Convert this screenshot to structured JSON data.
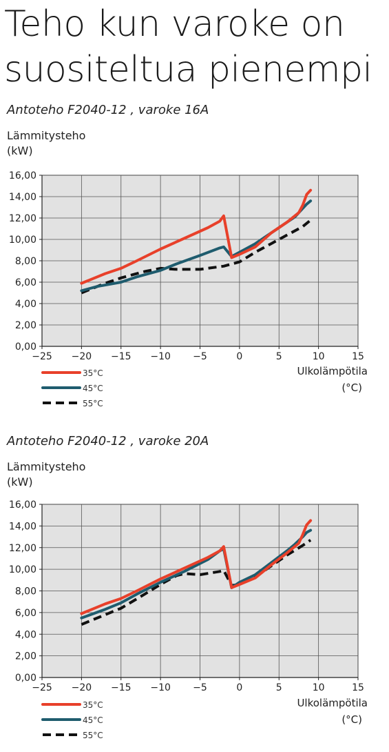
{
  "page": {
    "title_line1": "Teho kun varoke on",
    "title_line2": "suositeltua pienempi"
  },
  "colors": {
    "s35": "#e8402a",
    "s45": "#1f5c6e",
    "s55": "#111111",
    "plot_bg": "#e2e2e2",
    "grid": "#555555"
  },
  "chart_data": [
    {
      "type": "line",
      "title": "Antoteho F2040-12 , varoke 16A",
      "ylabel_line1": "Lämmitysteho",
      "ylabel_line2": "(kW)",
      "xlabel_line1": "Ulkolämpötila",
      "xlabel_line2": "(°C)",
      "xlim": [
        -25,
        15
      ],
      "ylim": [
        0,
        16
      ],
      "x_ticks": [
        "−25",
        "−20",
        "−15",
        "−10",
        "−5",
        "0",
        "5",
        "10",
        "15"
      ],
      "y_ticks": [
        "0,00",
        "2,00",
        "4,00",
        "6,00",
        "8,00",
        "10,00",
        "12,00",
        "14,00",
        "16,00"
      ],
      "grid": true,
      "legend_position": "bottom-left",
      "series": [
        {
          "name": "35°C",
          "style": "solid",
          "x": [
            -20,
            -17,
            -15,
            -13,
            -10,
            -7,
            -4,
            -2.5,
            -2,
            -1,
            0,
            2,
            4,
            6,
            7.5,
            8,
            8.5,
            9
          ],
          "y": [
            5.9,
            6.8,
            7.3,
            8.0,
            9.1,
            10.1,
            11.1,
            11.7,
            12.2,
            8.3,
            8.6,
            9.3,
            10.6,
            11.6,
            12.5,
            13.2,
            14.2,
            14.6
          ]
        },
        {
          "name": "45°C",
          "style": "solid",
          "x": [
            -20,
            -18,
            -15,
            -13,
            -10,
            -8,
            -5,
            -2.5,
            -2,
            -1,
            0,
            2,
            4,
            6,
            7,
            8,
            8.5,
            9
          ],
          "y": [
            5.2,
            5.6,
            6.0,
            6.5,
            7.1,
            7.7,
            8.5,
            9.2,
            9.3,
            8.4,
            8.8,
            9.6,
            10.6,
            11.6,
            12.1,
            12.9,
            13.3,
            13.6
          ]
        },
        {
          "name": "55°C",
          "style": "dashed",
          "x": [
            -20,
            -17,
            -15,
            -12,
            -10,
            -8,
            -5,
            -2,
            0,
            2,
            4,
            6,
            8,
            9
          ],
          "y": [
            5.0,
            5.9,
            6.4,
            7.0,
            7.3,
            7.2,
            7.2,
            7.5,
            7.9,
            8.8,
            9.6,
            10.4,
            11.2,
            11.8
          ]
        }
      ]
    },
    {
      "type": "line",
      "title": "Antoteho F2040-12 , varoke 20A",
      "ylabel_line1": "Lämmitysteho",
      "ylabel_line2": "(kW)",
      "xlabel_line1": "Ulkolämpötila",
      "xlabel_line2": "(°C)",
      "xlim": [
        -25,
        15
      ],
      "ylim": [
        0,
        16
      ],
      "x_ticks": [
        "−25",
        "−20",
        "−15",
        "−10",
        "−5",
        "0",
        "5",
        "10",
        "15"
      ],
      "y_ticks": [
        "0,00",
        "2,00",
        "4,00",
        "6,00",
        "8,00",
        "10,00",
        "12,00",
        "14,00",
        "16,00"
      ],
      "grid": true,
      "legend_position": "bottom-left",
      "series": [
        {
          "name": "35°C",
          "style": "solid",
          "x": [
            -20,
            -17,
            -15,
            -13,
            -10,
            -7,
            -4,
            -2.5,
            -2,
            -1,
            0,
            2,
            4,
            6,
            7.5,
            8,
            8.5,
            9
          ],
          "y": [
            5.9,
            6.8,
            7.3,
            8.0,
            9.1,
            10.1,
            11.1,
            11.7,
            12.1,
            8.3,
            8.6,
            9.2,
            10.4,
            11.5,
            12.4,
            13.2,
            14.1,
            14.5
          ]
        },
        {
          "name": "45°C",
          "style": "solid",
          "x": [
            -20,
            -17,
            -15,
            -13,
            -10,
            -7,
            -4,
            -2.5,
            -2,
            -1,
            0,
            2,
            4,
            6,
            7,
            8,
            8.5,
            9
          ],
          "y": [
            5.5,
            6.3,
            6.9,
            7.7,
            8.8,
            9.8,
            10.9,
            11.7,
            11.9,
            8.3,
            8.8,
            9.5,
            10.6,
            11.7,
            12.3,
            13.0,
            13.4,
            13.6
          ]
        },
        {
          "name": "55°C",
          "style": "dashed",
          "x": [
            -20,
            -17,
            -15,
            -12,
            -10,
            -8,
            -7,
            -5,
            -2.5,
            -2,
            -1,
            0,
            2,
            4,
            6,
            8,
            9
          ],
          "y": [
            4.9,
            5.8,
            6.4,
            7.7,
            8.6,
            9.4,
            9.6,
            9.5,
            9.8,
            9.9,
            8.5,
            8.6,
            9.3,
            10.3,
            11.3,
            12.2,
            12.7
          ]
        }
      ]
    }
  ]
}
